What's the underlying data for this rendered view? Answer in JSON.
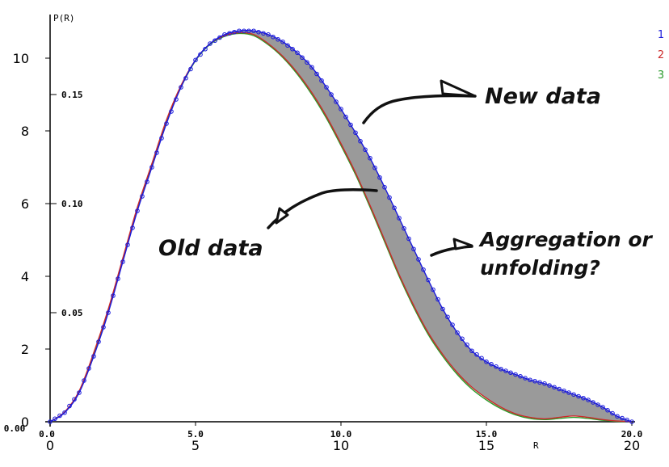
{
  "chart_data": {
    "type": "line",
    "title": "",
    "ylabel": "P(R)",
    "xlabel": "R",
    "x_range": [
      0,
      20
    ],
    "y_range_primary": [
      0,
      10.8
    ],
    "y_range_secondary": [
      0,
      0.18
    ],
    "primary_x_ticks": [
      0,
      5,
      10,
      15,
      20
    ],
    "primary_x_tick_labels": [
      "0",
      "5",
      "10",
      "15",
      "20"
    ],
    "secondary_x_ticks": [
      0,
      5,
      10,
      15,
      20
    ],
    "secondary_x_tick_labels": [
      "0.0",
      "5.0",
      "10.0",
      "15.0",
      "20.0"
    ],
    "primary_y_ticks": [
      0,
      2,
      4,
      6,
      8,
      10
    ],
    "primary_y_tick_labels": [
      "0",
      "2",
      "4",
      "6",
      "8",
      "10"
    ],
    "secondary_y_ticks": [
      0,
      0.05,
      0.1,
      0.15
    ],
    "secondary_y_tick_labels": [
      "0.00",
      "0.05",
      "0.10",
      "0.15"
    ],
    "legend": [
      "1",
      "2",
      "3"
    ],
    "legend_placement": "top-right",
    "shaded_region": "between series 1 and series 2",
    "series": [
      {
        "name": "1",
        "color": "#1a1adb",
        "markers": "circle",
        "x": [
          0,
          0.5,
          1,
          1.5,
          2,
          2.5,
          3,
          3.5,
          4,
          4.5,
          5,
          5.5,
          6,
          6.5,
          7,
          7.5,
          8,
          8.5,
          9,
          9.5,
          10,
          10.5,
          11,
          11.5,
          12,
          12.5,
          13,
          13.5,
          14,
          14.5,
          15,
          15.5,
          16,
          16.5,
          17,
          17.5,
          18,
          18.5,
          19,
          19.5,
          20
        ],
        "y": [
          0,
          0.25,
          0.8,
          1.8,
          3.0,
          4.4,
          5.8,
          7.0,
          8.2,
          9.2,
          9.95,
          10.4,
          10.65,
          10.75,
          10.75,
          10.65,
          10.45,
          10.15,
          9.75,
          9.2,
          8.6,
          7.95,
          7.25,
          6.45,
          5.6,
          4.75,
          3.9,
          3.1,
          2.45,
          1.95,
          1.65,
          1.45,
          1.3,
          1.15,
          1.05,
          0.9,
          0.75,
          0.6,
          0.4,
          0.15,
          0
        ]
      },
      {
        "name": "2",
        "color": "#cc2a2a",
        "x": [
          0,
          0.5,
          1,
          1.5,
          2,
          2.5,
          3,
          3.5,
          4,
          4.5,
          5,
          5.5,
          6,
          6.5,
          7,
          7.5,
          8,
          8.5,
          9,
          9.5,
          10,
          10.5,
          11,
          11.5,
          12,
          12.5,
          13,
          13.5,
          14,
          14.5,
          15,
          15.5,
          16,
          16.5,
          17,
          17.5,
          18,
          18.5,
          19,
          19.5,
          20
        ],
        "y": [
          0,
          0.27,
          0.85,
          1.9,
          3.1,
          4.5,
          5.9,
          7.1,
          8.3,
          9.25,
          9.95,
          10.4,
          10.62,
          10.7,
          10.65,
          10.4,
          10.05,
          9.6,
          9.05,
          8.4,
          7.65,
          6.85,
          5.95,
          5.0,
          4.05,
          3.2,
          2.45,
          1.85,
          1.35,
          0.95,
          0.65,
          0.4,
          0.22,
          0.12,
          0.08,
          0.12,
          0.16,
          0.12,
          0.06,
          0.02,
          0
        ]
      },
      {
        "name": "3",
        "color": "#2a9a2a",
        "x": [
          0,
          0.5,
          1,
          1.5,
          2,
          2.5,
          3,
          3.5,
          4,
          4.5,
          5,
          5.5,
          6,
          6.5,
          7,
          7.5,
          8,
          8.5,
          9,
          9.5,
          10,
          10.5,
          11,
          11.5,
          12,
          12.5,
          13,
          13.5,
          14,
          14.5,
          15,
          15.5,
          16,
          16.5,
          17,
          17.5,
          18,
          18.5,
          19,
          19.5,
          20
        ],
        "y": [
          0,
          0.26,
          0.82,
          1.85,
          3.05,
          4.45,
          5.85,
          7.05,
          8.25,
          9.2,
          9.93,
          10.38,
          10.6,
          10.68,
          10.62,
          10.37,
          10.02,
          9.56,
          9.0,
          8.35,
          7.6,
          6.8,
          5.9,
          4.95,
          4.0,
          3.15,
          2.4,
          1.8,
          1.3,
          0.9,
          0.6,
          0.36,
          0.19,
          0.09,
          0.06,
          0.09,
          0.12,
          0.09,
          0.04,
          0.01,
          0
        ]
      }
    ],
    "annotations": [
      {
        "text": "New data",
        "x": 11.7,
        "y": 8.9
      },
      {
        "text": "Old data",
        "x": 7.5,
        "y": 5.7
      },
      {
        "text": "Aggregation or",
        "x": 13.5,
        "y": 4.9
      },
      {
        "text": "unfolding?",
        "x": 13.5,
        "y": 4.0
      }
    ]
  }
}
